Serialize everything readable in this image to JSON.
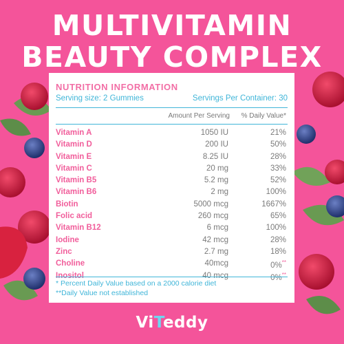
{
  "headline": {
    "line1": "MULTIVITAMIN",
    "line2": "BEAUTY COMPLEX"
  },
  "panel": {
    "title": "NUTRITION INFORMATION",
    "serving_size": "Serving size: 2 Gummies",
    "servings_per_container": "Servings Per Container: 30",
    "header_amount": "Amount Per Serving",
    "header_dv": "% Daily Value*",
    "rows": [
      {
        "name": "Vitamin A",
        "amount": "1050 IU",
        "dv": "21%",
        "mark": ""
      },
      {
        "name": "Vitamin D",
        "amount": "200 IU",
        "dv": "50%",
        "mark": ""
      },
      {
        "name": "Vitamin E",
        "amount": "8.25 IU",
        "dv": "28%",
        "mark": ""
      },
      {
        "name": "Vitamin C",
        "amount": "20 mg",
        "dv": "33%",
        "mark": ""
      },
      {
        "name": "Vitamin B5",
        "amount": "5.2 mg",
        "dv": "52%",
        "mark": ""
      },
      {
        "name": "Vitamin B6",
        "amount": "2 mg",
        "dv": "100%",
        "mark": ""
      },
      {
        "name": "Biotin",
        "amount": "5000 mcg",
        "dv": "1667%",
        "mark": ""
      },
      {
        "name": "Folic acid",
        "amount": "260 mcg",
        "dv": "65%",
        "mark": ""
      },
      {
        "name": "Vitamin B12",
        "amount": "6 mcg",
        "dv": "100%",
        "mark": ""
      },
      {
        "name": "Iodine",
        "amount": "42 mcg",
        "dv": "28%",
        "mark": ""
      },
      {
        "name": "Zinc",
        "amount": "2.7 mg",
        "dv": "18%",
        "mark": ""
      },
      {
        "name": "Choline",
        "amount": "40mcg",
        "dv": "0%",
        "mark": "**"
      },
      {
        "name": "Inositol",
        "amount": "40 mcg",
        "dv": "0%",
        "mark": "**"
      }
    ],
    "footnote1": "* Percent Daily Value based on a 2000 calorie diet",
    "footnote2": "**Daily Value not established"
  },
  "brand": {
    "prefix": "Vi",
    "highlight": "T",
    "suffix": "eddy"
  },
  "colors": {
    "background": "#f4549a",
    "accent_pink": "#f15e9b",
    "accent_blue": "#3fb5d8",
    "panel": "#ffffff"
  },
  "decor_icons": [
    "raspberry-icon",
    "blueberry-icon",
    "mint-leaf-icon",
    "strawberry-icon"
  ]
}
